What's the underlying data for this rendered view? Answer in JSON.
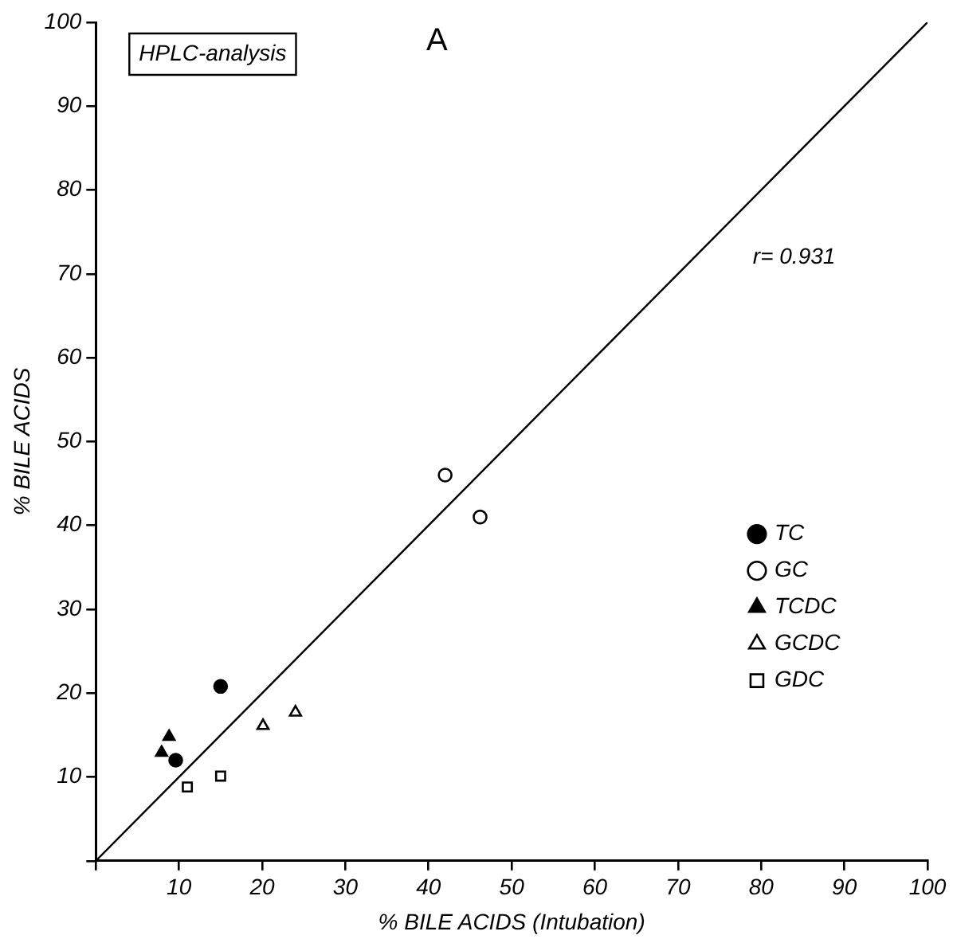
{
  "chart_data": {
    "type": "scatter",
    "title": "A",
    "xlabel": "% BILE ACIDS (Intubation)",
    "ylabel": "% BILE ACIDS",
    "annotations": [
      "HPLC-analysis",
      "r= 0.931"
    ],
    "xlim": [
      0,
      100
    ],
    "ylim": [
      0,
      100
    ],
    "xticks": [
      {
        "value": 0,
        "label": null
      },
      10,
      20,
      30,
      40,
      50,
      60,
      70,
      80,
      90,
      100
    ],
    "yticks": [
      {
        "value": 0,
        "label": null
      },
      10,
      20,
      30,
      40,
      50,
      60,
      70,
      80,
      90,
      100
    ],
    "grid": false,
    "legend": "bottom right",
    "series": [
      {
        "name": "TC",
        "color": "#000000",
        "marker": "circle",
        "x": [
          15,
          9.6
        ],
        "values": [
          20.8,
          12
        ]
      },
      {
        "name": "GC",
        "color": "#ffffff",
        "marker": "circle",
        "x": [
          42,
          46.2
        ],
        "values": [
          46,
          41
        ]
      },
      {
        "name": "TCDC",
        "color": "#000000",
        "marker": "triangle",
        "x": [
          8.8,
          7.9
        ],
        "values": [
          14.8,
          12.9
        ]
      },
      {
        "name": "GCDC",
        "color": "#ffffff",
        "marker": "triangle",
        "x": [
          20.1,
          24
        ],
        "values": [
          16.1,
          17.7
        ]
      },
      {
        "name": "GDC",
        "color": "#ffffff",
        "marker": "square",
        "x": [
          11,
          15
        ],
        "values": [
          8.8,
          10.1
        ]
      },
      {
        "type": "line",
        "color": "#000000",
        "x": [
          0,
          100
        ],
        "values": [
          0,
          100
        ]
      }
    ]
  }
}
